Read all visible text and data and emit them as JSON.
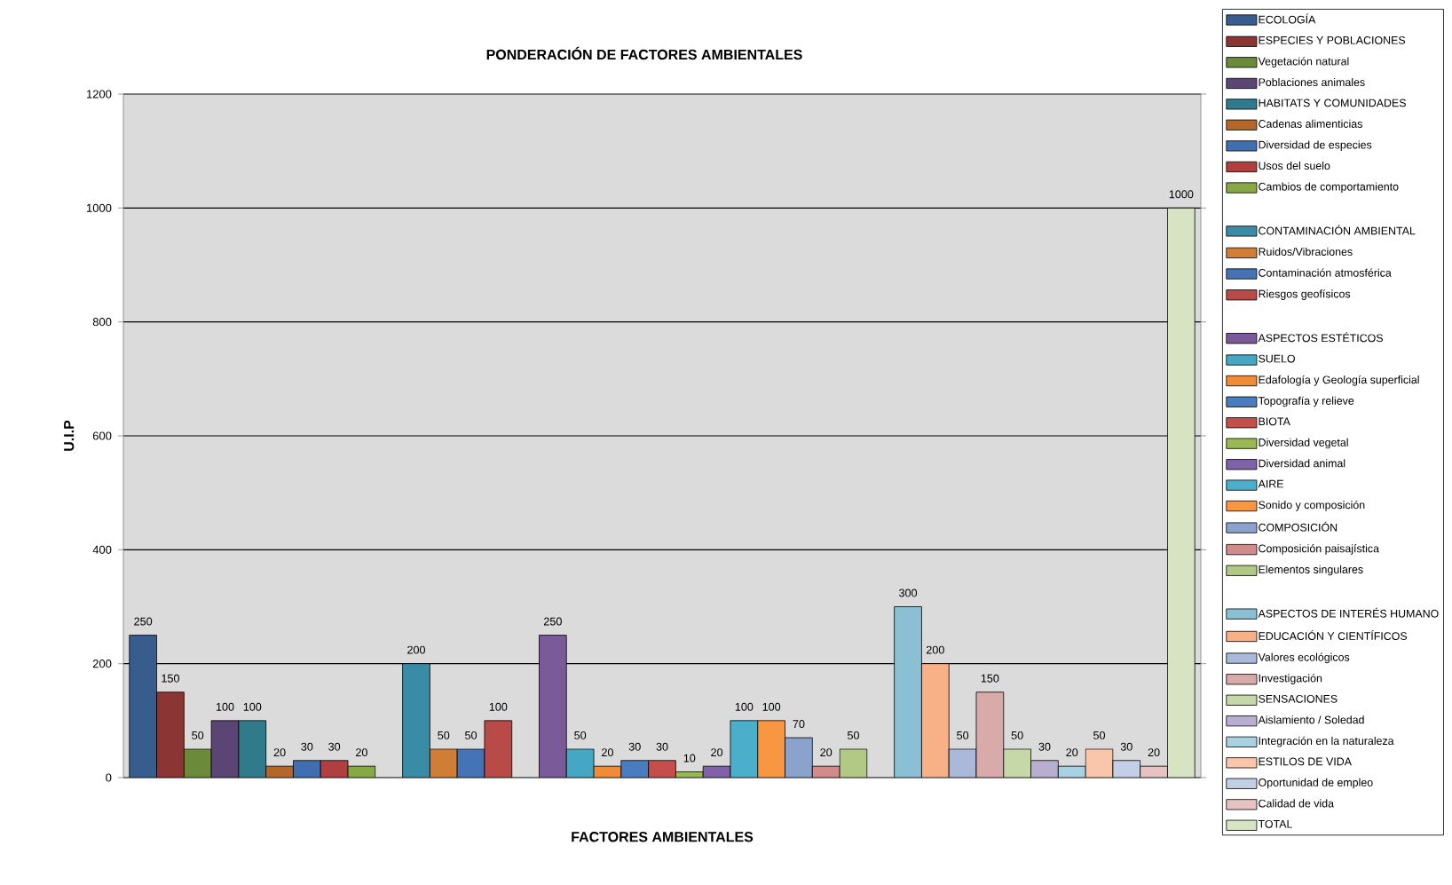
{
  "chart_data": {
    "type": "bar",
    "title": "PONDERACIÓN DE FACTORES AMBIENTALES",
    "xlabel": "FACTORES AMBIENTALES",
    "ylabel": "U.I.P",
    "categories": [
      null,
      null,
      null,
      null,
      null,
      null,
      null,
      null,
      null,
      null,
      null,
      null,
      null,
      null,
      null,
      null,
      null,
      null,
      null,
      null,
      null,
      null,
      null,
      null,
      null,
      null,
      null,
      null,
      null,
      null,
      null,
      null,
      null,
      null,
      null,
      null,
      null,
      null,
      null
    ],
    "ylim": [
      0,
      1200
    ],
    "yticks": [
      0,
      200,
      400,
      600,
      800,
      1000,
      1200
    ],
    "grid": "y",
    "legend": "right",
    "data_labels": true,
    "series": [
      {
        "name": "ECOLOGÍA",
        "color": "#375d8f",
        "values": [
          250,
          null,
          null,
          null,
          null,
          null,
          null,
          null,
          null,
          null,
          null,
          null,
          null,
          null,
          null,
          null,
          null,
          null,
          null,
          null,
          null,
          null,
          null,
          null,
          null,
          null,
          null,
          null,
          null,
          null,
          null,
          null,
          null,
          null,
          null,
          null,
          null,
          null,
          null
        ]
      },
      {
        "name": "ESPECIES Y POBLACIONES",
        "color": "#8b3535",
        "values": [
          null,
          150,
          null,
          null,
          null,
          null,
          null,
          null,
          null,
          null,
          null,
          null,
          null,
          null,
          null,
          null,
          null,
          null,
          null,
          null,
          null,
          null,
          null,
          null,
          null,
          null,
          null,
          null,
          null,
          null,
          null,
          null,
          null,
          null,
          null,
          null,
          null,
          null,
          null
        ]
      },
      {
        "name": "Vegetación natural",
        "color": "#6b8a3a",
        "values": [
          null,
          null,
          50,
          null,
          null,
          null,
          null,
          null,
          null,
          null,
          null,
          null,
          null,
          null,
          null,
          null,
          null,
          null,
          null,
          null,
          null,
          null,
          null,
          null,
          null,
          null,
          null,
          null,
          null,
          null,
          null,
          null,
          null,
          null,
          null,
          null,
          null,
          null,
          null
        ]
      },
      {
        "name": "Poblaciones animales",
        "color": "#5b4574",
        "values": [
          null,
          null,
          null,
          100,
          null,
          null,
          null,
          null,
          null,
          null,
          null,
          null,
          null,
          null,
          null,
          null,
          null,
          null,
          null,
          null,
          null,
          null,
          null,
          null,
          null,
          null,
          null,
          null,
          null,
          null,
          null,
          null,
          null,
          null,
          null,
          null,
          null,
          null,
          null
        ]
      },
      {
        "name": "HABITATS Y COMUNIDADES",
        "color": "#317a8c",
        "values": [
          null,
          null,
          null,
          null,
          100,
          null,
          null,
          null,
          null,
          null,
          null,
          null,
          null,
          null,
          null,
          null,
          null,
          null,
          null,
          null,
          null,
          null,
          null,
          null,
          null,
          null,
          null,
          null,
          null,
          null,
          null,
          null,
          null,
          null,
          null,
          null,
          null,
          null,
          null
        ]
      },
      {
        "name": "Cadenas alimenticias",
        "color": "#b5672a",
        "values": [
          null,
          null,
          null,
          null,
          null,
          20,
          null,
          null,
          null,
          null,
          null,
          null,
          null,
          null,
          null,
          null,
          null,
          null,
          null,
          null,
          null,
          null,
          null,
          null,
          null,
          null,
          null,
          null,
          null,
          null,
          null,
          null,
          null,
          null,
          null,
          null,
          null,
          null,
          null
        ]
      },
      {
        "name": "Diversidad de especies",
        "color": "#3f6fb0",
        "values": [
          null,
          null,
          null,
          null,
          null,
          null,
          30,
          null,
          null,
          null,
          null,
          null,
          null,
          null,
          null,
          null,
          null,
          null,
          null,
          null,
          null,
          null,
          null,
          null,
          null,
          null,
          null,
          null,
          null,
          null,
          null,
          null,
          null,
          null,
          null,
          null,
          null,
          null,
          null
        ]
      },
      {
        "name": "Usos del suelo",
        "color": "#b04040",
        "values": [
          null,
          null,
          null,
          null,
          null,
          null,
          null,
          30,
          null,
          null,
          null,
          null,
          null,
          null,
          null,
          null,
          null,
          null,
          null,
          null,
          null,
          null,
          null,
          null,
          null,
          null,
          null,
          null,
          null,
          null,
          null,
          null,
          null,
          null,
          null,
          null,
          null,
          null,
          null
        ]
      },
      {
        "name": "Cambios de comportamiento",
        "color": "#86a845",
        "values": [
          null,
          null,
          null,
          null,
          null,
          null,
          null,
          null,
          20,
          null,
          null,
          null,
          null,
          null,
          null,
          null,
          null,
          null,
          null,
          null,
          null,
          null,
          null,
          null,
          null,
          null,
          null,
          null,
          null,
          null,
          null,
          null,
          null,
          null,
          null,
          null,
          null,
          null,
          null
        ]
      },
      {
        "name": "CONTAMINACIÓN  AMBIENTAL",
        "color": "#3a8ba5",
        "values": [
          null,
          null,
          null,
          null,
          null,
          null,
          null,
          null,
          null,
          null,
          200,
          null,
          null,
          null,
          null,
          null,
          null,
          null,
          null,
          null,
          null,
          null,
          null,
          null,
          null,
          null,
          null,
          null,
          null,
          null,
          null,
          null,
          null,
          null,
          null,
          null,
          null,
          null,
          null
        ]
      },
      {
        "name": "Ruidos/Vibraciones",
        "color": "#d07d36",
        "values": [
          null,
          null,
          null,
          null,
          null,
          null,
          null,
          null,
          null,
          null,
          null,
          50,
          null,
          null,
          null,
          null,
          null,
          null,
          null,
          null,
          null,
          null,
          null,
          null,
          null,
          null,
          null,
          null,
          null,
          null,
          null,
          null,
          null,
          null,
          null,
          null,
          null,
          null,
          null
        ]
      },
      {
        "name": "Contaminación atmosférica",
        "color": "#4573b5",
        "values": [
          null,
          null,
          null,
          null,
          null,
          null,
          null,
          null,
          null,
          null,
          null,
          null,
          50,
          null,
          null,
          null,
          null,
          null,
          null,
          null,
          null,
          null,
          null,
          null,
          null,
          null,
          null,
          null,
          null,
          null,
          null,
          null,
          null,
          null,
          null,
          null,
          null,
          null,
          null
        ]
      },
      {
        "name": "Riesgos geofísicos",
        "color": "#b84a48",
        "values": [
          null,
          null,
          null,
          null,
          null,
          null,
          null,
          null,
          null,
          null,
          null,
          null,
          null,
          100,
          null,
          null,
          null,
          null,
          null,
          null,
          null,
          null,
          null,
          null,
          null,
          null,
          null,
          null,
          null,
          null,
          null,
          null,
          null,
          null,
          null,
          null,
          null,
          null,
          null
        ]
      },
      {
        "name": "ASPECTOS ESTÉTICOS",
        "color": "#7a5a98",
        "values": [
          null,
          null,
          null,
          null,
          null,
          null,
          null,
          null,
          null,
          null,
          null,
          null,
          null,
          null,
          null,
          250,
          null,
          null,
          null,
          null,
          null,
          null,
          null,
          null,
          null,
          null,
          null,
          null,
          null,
          null,
          null,
          null,
          null,
          null,
          null,
          null,
          null,
          null,
          null
        ]
      },
      {
        "name": "SUELO",
        "color": "#45a7c4",
        "values": [
          null,
          null,
          null,
          null,
          null,
          null,
          null,
          null,
          null,
          null,
          null,
          null,
          null,
          null,
          null,
          null,
          50,
          null,
          null,
          null,
          null,
          null,
          null,
          null,
          null,
          null,
          null,
          null,
          null,
          null,
          null,
          null,
          null,
          null,
          null,
          null,
          null,
          null,
          null
        ]
      },
      {
        "name": "Edafología y Geología superficial",
        "color": "#f08c38",
        "values": [
          null,
          null,
          null,
          null,
          null,
          null,
          null,
          null,
          null,
          null,
          null,
          null,
          null,
          null,
          null,
          null,
          null,
          20,
          null,
          null,
          null,
          null,
          null,
          null,
          null,
          null,
          null,
          null,
          null,
          null,
          null,
          null,
          null,
          null,
          null,
          null,
          null,
          null,
          null
        ]
      },
      {
        "name": "Topografía y relieve",
        "color": "#4a7cc0",
        "values": [
          null,
          null,
          null,
          null,
          null,
          null,
          null,
          null,
          null,
          null,
          null,
          null,
          null,
          null,
          null,
          null,
          null,
          null,
          30,
          null,
          null,
          null,
          null,
          null,
          null,
          null,
          null,
          null,
          null,
          null,
          null,
          null,
          null,
          null,
          null,
          null,
          null,
          null,
          null
        ]
      },
      {
        "name": "BIOTA",
        "color": "#c44e4c",
        "values": [
          null,
          null,
          null,
          null,
          null,
          null,
          null,
          null,
          null,
          null,
          null,
          null,
          null,
          null,
          null,
          null,
          null,
          null,
          null,
          30,
          null,
          null,
          null,
          null,
          null,
          null,
          null,
          null,
          null,
          null,
          null,
          null,
          null,
          null,
          null,
          null,
          null,
          null,
          null
        ]
      },
      {
        "name": "Diversidad vegetal",
        "color": "#98b954",
        "values": [
          null,
          null,
          null,
          null,
          null,
          null,
          null,
          null,
          null,
          null,
          null,
          null,
          null,
          null,
          null,
          null,
          null,
          null,
          null,
          null,
          10,
          null,
          null,
          null,
          null,
          null,
          null,
          null,
          null,
          null,
          null,
          null,
          null,
          null,
          null,
          null,
          null,
          null,
          null
        ]
      },
      {
        "name": "Diversidad  animal",
        "color": "#7f62a8",
        "values": [
          null,
          null,
          null,
          null,
          null,
          null,
          null,
          null,
          null,
          null,
          null,
          null,
          null,
          null,
          null,
          null,
          null,
          null,
          null,
          null,
          null,
          20,
          null,
          null,
          null,
          null,
          null,
          null,
          null,
          null,
          null,
          null,
          null,
          null,
          null,
          null,
          null,
          null,
          null
        ]
      },
      {
        "name": "AIRE",
        "color": "#4bafcb",
        "values": [
          null,
          null,
          null,
          null,
          null,
          null,
          null,
          null,
          null,
          null,
          null,
          null,
          null,
          null,
          null,
          null,
          null,
          null,
          null,
          null,
          null,
          null,
          100,
          null,
          null,
          null,
          null,
          null,
          null,
          null,
          null,
          null,
          null,
          null,
          null,
          null,
          null,
          null,
          null
        ]
      },
      {
        "name": "Sonido y composición",
        "color": "#f89642",
        "values": [
          null,
          null,
          null,
          null,
          null,
          null,
          null,
          null,
          null,
          null,
          null,
          null,
          null,
          null,
          null,
          null,
          null,
          null,
          null,
          null,
          null,
          null,
          null,
          100,
          null,
          null,
          null,
          null,
          null,
          null,
          null,
          null,
          null,
          null,
          null,
          null,
          null,
          null,
          null
        ]
      },
      {
        "name": "COMPOSICIÓN",
        "color": "#8aa2cc",
        "values": [
          null,
          null,
          null,
          null,
          null,
          null,
          null,
          null,
          null,
          null,
          null,
          null,
          null,
          null,
          null,
          null,
          null,
          null,
          null,
          null,
          null,
          null,
          null,
          null,
          70,
          null,
          null,
          null,
          null,
          null,
          null,
          null,
          null,
          null,
          null,
          null,
          null,
          null,
          null
        ]
      },
      {
        "name": "Composición paisajística",
        "color": "#d08b8a",
        "values": [
          null,
          null,
          null,
          null,
          null,
          null,
          null,
          null,
          null,
          null,
          null,
          null,
          null,
          null,
          null,
          null,
          null,
          null,
          null,
          null,
          null,
          null,
          null,
          null,
          null,
          20,
          null,
          null,
          null,
          null,
          null,
          null,
          null,
          null,
          null,
          null,
          null,
          null,
          null
        ]
      },
      {
        "name": "Elementos singulares",
        "color": "#b1c985",
        "values": [
          null,
          null,
          null,
          null,
          null,
          null,
          null,
          null,
          null,
          null,
          null,
          null,
          null,
          null,
          null,
          null,
          null,
          null,
          null,
          null,
          null,
          null,
          null,
          null,
          null,
          null,
          50,
          null,
          null,
          null,
          null,
          null,
          null,
          null,
          null,
          null,
          null,
          null,
          null
        ]
      },
      {
        "name": "ASPECTOS DE INTERÉS HUMANO",
        "color": "#8bc0d4",
        "values": [
          null,
          null,
          null,
          null,
          null,
          null,
          null,
          null,
          null,
          null,
          null,
          null,
          null,
          null,
          null,
          null,
          null,
          null,
          null,
          null,
          null,
          null,
          null,
          null,
          null,
          null,
          null,
          null,
          300,
          null,
          null,
          null,
          null,
          null,
          null,
          null,
          null,
          null,
          null
        ]
      },
      {
        "name": "EDUCACIÓN Y CIENTÍFICOS",
        "color": "#f8b086",
        "values": [
          null,
          null,
          null,
          null,
          null,
          null,
          null,
          null,
          null,
          null,
          null,
          null,
          null,
          null,
          null,
          null,
          null,
          null,
          null,
          null,
          null,
          null,
          null,
          null,
          null,
          null,
          null,
          null,
          null,
          200,
          null,
          null,
          null,
          null,
          null,
          null,
          null,
          null,
          null
        ]
      },
      {
        "name": "Valores ecológicos",
        "color": "#aab9da",
        "values": [
          null,
          null,
          null,
          null,
          null,
          null,
          null,
          null,
          null,
          null,
          null,
          null,
          null,
          null,
          null,
          null,
          null,
          null,
          null,
          null,
          null,
          null,
          null,
          null,
          null,
          null,
          null,
          null,
          null,
          null,
          50,
          null,
          null,
          null,
          null,
          null,
          null,
          null,
          null
        ]
      },
      {
        "name": "Investigación",
        "color": "#d9aaaa",
        "values": [
          null,
          null,
          null,
          null,
          null,
          null,
          null,
          null,
          null,
          null,
          null,
          null,
          null,
          null,
          null,
          null,
          null,
          null,
          null,
          null,
          null,
          null,
          null,
          null,
          null,
          null,
          null,
          null,
          null,
          null,
          null,
          150,
          null,
          null,
          null,
          null,
          null,
          null,
          null
        ]
      },
      {
        "name": "SENSACIONES",
        "color": "#c6d8a8",
        "values": [
          null,
          null,
          null,
          null,
          null,
          null,
          null,
          null,
          null,
          null,
          null,
          null,
          null,
          null,
          null,
          null,
          null,
          null,
          null,
          null,
          null,
          null,
          null,
          null,
          null,
          null,
          null,
          null,
          null,
          null,
          null,
          null,
          50,
          null,
          null,
          null,
          null,
          null,
          null
        ]
      },
      {
        "name": "Aislamiento / Soledad",
        "color": "#b8aed0",
        "values": [
          null,
          null,
          null,
          null,
          null,
          null,
          null,
          null,
          null,
          null,
          null,
          null,
          null,
          null,
          null,
          null,
          null,
          null,
          null,
          null,
          null,
          null,
          null,
          null,
          null,
          null,
          null,
          null,
          null,
          null,
          null,
          null,
          null,
          30,
          null,
          null,
          null,
          null,
          null
        ]
      },
      {
        "name": "Integración en la naturaleza",
        "color": "#a8d2e2",
        "values": [
          null,
          null,
          null,
          null,
          null,
          null,
          null,
          null,
          null,
          null,
          null,
          null,
          null,
          null,
          null,
          null,
          null,
          null,
          null,
          null,
          null,
          null,
          null,
          null,
          null,
          null,
          null,
          null,
          null,
          null,
          null,
          null,
          null,
          null,
          20,
          null,
          null,
          null,
          null
        ]
      },
      {
        "name": "ESTILOS DE VIDA",
        "color": "#f9c6ab",
        "values": [
          null,
          null,
          null,
          null,
          null,
          null,
          null,
          null,
          null,
          null,
          null,
          null,
          null,
          null,
          null,
          null,
          null,
          null,
          null,
          null,
          null,
          null,
          null,
          null,
          null,
          null,
          null,
          null,
          null,
          null,
          null,
          null,
          null,
          null,
          null,
          50,
          null,
          null,
          null
        ]
      },
      {
        "name": "Oportunidad de empleo",
        "color": "#c2cfe6",
        "values": [
          null,
          null,
          null,
          null,
          null,
          null,
          null,
          null,
          null,
          null,
          null,
          null,
          null,
          null,
          null,
          null,
          null,
          null,
          null,
          null,
          null,
          null,
          null,
          null,
          null,
          null,
          null,
          null,
          null,
          null,
          null,
          null,
          null,
          null,
          null,
          null,
          30,
          null,
          null
        ]
      },
      {
        "name": "Calidad de vida",
        "color": "#e6c2c2",
        "values": [
          null,
          null,
          null,
          null,
          null,
          null,
          null,
          null,
          null,
          null,
          null,
          null,
          null,
          null,
          null,
          null,
          null,
          null,
          null,
          null,
          null,
          null,
          null,
          null,
          null,
          null,
          null,
          null,
          null,
          null,
          null,
          null,
          null,
          null,
          null,
          null,
          null,
          20,
          null
        ]
      },
      {
        "name": "TOTAL",
        "color": "#d7e4c4",
        "values": [
          null,
          null,
          null,
          null,
          null,
          null,
          null,
          null,
          null,
          null,
          null,
          null,
          null,
          null,
          null,
          null,
          null,
          null,
          null,
          null,
          null,
          null,
          null,
          null,
          null,
          null,
          null,
          null,
          null,
          null,
          null,
          null,
          null,
          null,
          null,
          null,
          null,
          null,
          1000
        ]
      }
    ]
  }
}
